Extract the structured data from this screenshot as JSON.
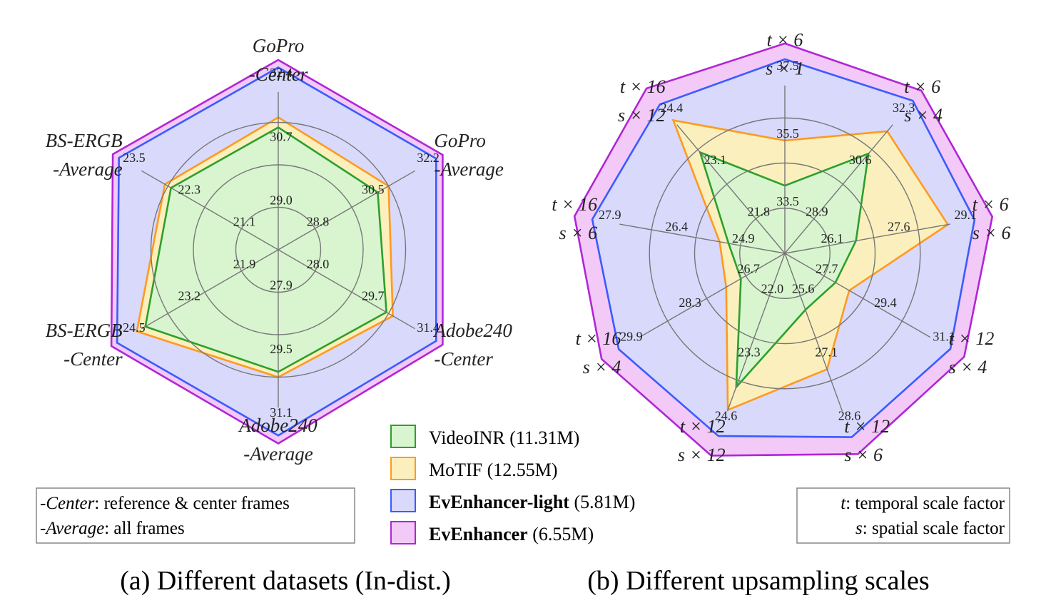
{
  "colors": {
    "videoinr": "#2ca02c",
    "motif": "#ff9a1f",
    "light": "#3b5bff",
    "full": "#b026d6",
    "videoinr_fill": "#d9f5cf",
    "motif_fill": "#fbf0bd",
    "light_fill": "#d8d9fb",
    "full_fill": "#f3c9f7",
    "grid": "#777777"
  },
  "legend": [
    {
      "key": "videoinr",
      "name": "VideoINR",
      "params": " (11.31M)",
      "bold": false
    },
    {
      "key": "motif",
      "name": "MoTIF",
      "params": " (12.55M)",
      "bold": false
    },
    {
      "key": "light",
      "name": "EvEnhancer-light",
      "params": " (5.81M)",
      "bold": true
    },
    {
      "key": "full",
      "name": "EvEnhancer",
      "params": " (6.55M)",
      "bold": true
    }
  ],
  "note_a": {
    "line1_em": "-Center",
    "line1_rest": ": reference & center frames",
    "line2_em": "-Average",
    "line2_rest": ": all frames"
  },
  "note_b": {
    "line1_em": "t",
    "line1_rest": ": temporal scale factor",
    "line2_em": "s",
    "line2_rest": ": spatial scale factor"
  },
  "chart_data": [
    {
      "type": "radar",
      "title": "(a) Different datasets (In-dist.)",
      "axes": [
        {
          "label": [
            "GoPro",
            "-Center"
          ],
          "ticks": [
            "29.0",
            "30.7",
            "32.4"
          ],
          "min": 27.3
        },
        {
          "label": [
            "GoPro",
            "-Average"
          ],
          "ticks": [
            "28.8",
            "30.5",
            "32.2"
          ],
          "min": 27.1
        },
        {
          "label": [
            "Adobe240",
            "-Center"
          ],
          "ticks": [
            "28.0",
            "29.7",
            "31.4"
          ],
          "min": 26.3
        },
        {
          "label": [
            "Adobe240",
            "-Average"
          ],
          "ticks": [
            "27.9",
            "29.5",
            "31.1"
          ],
          "min": 26.3
        },
        {
          "label": [
            "BS-ERGB",
            "-Center"
          ],
          "ticks": [
            "21.9",
            "23.2",
            "24.5"
          ],
          "min": 20.6
        },
        {
          "label": [
            "BS-ERGB",
            "-Average"
          ],
          "ticks": [
            "21.1",
            "22.3",
            "23.5"
          ],
          "min": 19.9
        }
      ],
      "series": [
        {
          "key": "full",
          "name": "EvEnhancer",
          "values": [
            33.2,
            33.0,
            32.2,
            32.0,
            25.2,
            24.1
          ]
        },
        {
          "key": "light",
          "name": "EvEnhancer-light",
          "values": [
            32.9,
            32.7,
            31.9,
            31.7,
            25.0,
            23.9
          ]
        },
        {
          "key": "motif",
          "name": "MoTIF",
          "values": [
            30.9,
            30.5,
            29.9,
            29.5,
            24.3,
            22.4
          ]
        },
        {
          "key": "videoinr",
          "name": "VideoINR",
          "values": [
            30.5,
            30.0,
            29.6,
            29.3,
            24.0,
            22.2
          ]
        }
      ]
    },
    {
      "type": "radar",
      "title": "(b) Different upsampling scales",
      "axes": [
        {
          "label": [
            "t × 6",
            "s × 1"
          ],
          "ticks": [
            "33.5",
            "35.5",
            "37.5"
          ],
          "min": 31.5
        },
        {
          "label": [
            "t × 6",
            "s × 4"
          ],
          "ticks": [
            "28.9",
            "30.6",
            "32.3"
          ],
          "min": 27.2
        },
        {
          "label": [
            "t × 6",
            "s × 6"
          ],
          "ticks": [
            "26.1",
            "27.6",
            "29.1"
          ],
          "min": 24.6
        },
        {
          "label": [
            "t × 12",
            "s × 4"
          ],
          "ticks": [
            "27.7",
            "29.4",
            "31.1"
          ],
          "min": 26.0
        },
        {
          "label": [
            "t × 12",
            "s × 6"
          ],
          "ticks": [
            "25.6",
            "27.1",
            "28.6"
          ],
          "min": 24.1
        },
        {
          "label": [
            "t × 12",
            "s × 12"
          ],
          "ticks": [
            "22.0",
            "23.3",
            "24.6"
          ],
          "min": 20.7
        },
        {
          "label": [
            "t × 16",
            "s × 4"
          ],
          "ticks": [
            "26.7",
            "28.3",
            "29.9"
          ],
          "min": 25.1
        },
        {
          "label": [
            "t × 16",
            "s × 6"
          ],
          "ticks": [
            "24.9",
            "26.4",
            "27.9"
          ],
          "min": 23.4
        },
        {
          "label": [
            "t × 16",
            "s × 12"
          ],
          "ticks": [
            "21.8",
            "23.1",
            "24.4"
          ],
          "min": 20.5
        }
      ],
      "series": [
        {
          "key": "full",
          "name": "EvEnhancer",
          "values": [
            38.8,
            33.5,
            30.1,
            32.1,
            29.7,
            25.6,
            31.0,
            29.0,
            25.4
          ]
        },
        {
          "key": "light",
          "name": "EvEnhancer-light",
          "values": [
            38.1,
            33.0,
            29.5,
            31.5,
            29.1,
            25.0,
            30.3,
            28.4,
            24.8
          ]
        },
        {
          "key": "motif",
          "name": "MoTIF",
          "values": [
            34.5,
            31.5,
            28.6,
            27.1,
            26.7,
            24.2,
            25.9,
            24.1,
            24.2
          ]
        },
        {
          "key": "videoinr",
          "name": "VideoINR",
          "values": [
            32.5,
            30.4,
            25.5,
            26.5,
            24.6,
            23.5,
            25.3,
            23.8,
            23.0
          ]
        }
      ]
    }
  ]
}
